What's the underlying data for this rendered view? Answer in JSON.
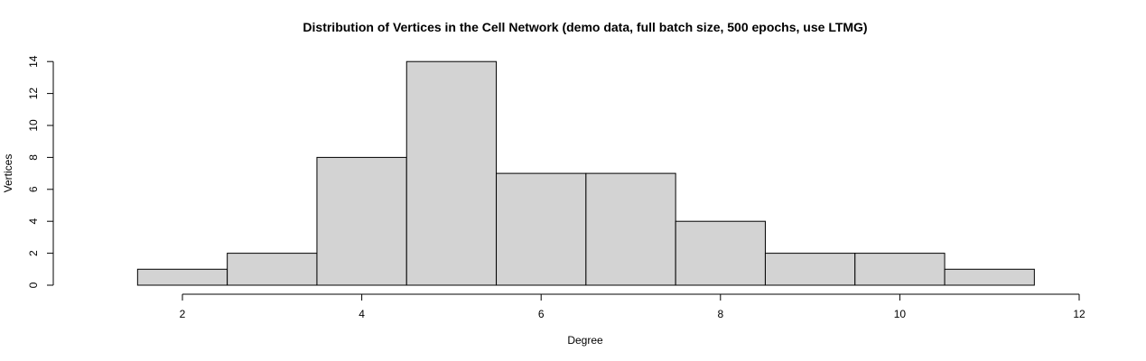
{
  "chart_data": {
    "type": "bar",
    "title": "Distribution of Vertices in the Cell Network (demo data, full batch size, 500 epochs, use LTMG)",
    "xlabel": "Degree",
    "ylabel": "Vertices",
    "bins": [
      {
        "from": 1.5,
        "to": 2.5,
        "count": 1
      },
      {
        "from": 2.5,
        "to": 3.5,
        "count": 2
      },
      {
        "from": 3.5,
        "to": 4.5,
        "count": 8
      },
      {
        "from": 4.5,
        "to": 5.5,
        "count": 14
      },
      {
        "from": 5.5,
        "to": 6.5,
        "count": 7
      },
      {
        "from": 6.5,
        "to": 7.5,
        "count": 7
      },
      {
        "from": 7.5,
        "to": 8.5,
        "count": 4
      },
      {
        "from": 8.5,
        "to": 9.5,
        "count": 2
      },
      {
        "from": 9.5,
        "to": 10.5,
        "count": 2
      },
      {
        "from": 10.5,
        "to": 11.5,
        "count": 1
      }
    ],
    "xlim": [
      2,
      12
    ],
    "ylim": [
      0,
      14
    ],
    "xticks": [
      2,
      4,
      6,
      8,
      10,
      12
    ],
    "yticks": [
      0,
      2,
      4,
      6,
      8,
      10,
      12,
      14
    ],
    "grid": false,
    "bar_color": "#d3d3d3",
    "edge_color": "#000000"
  }
}
